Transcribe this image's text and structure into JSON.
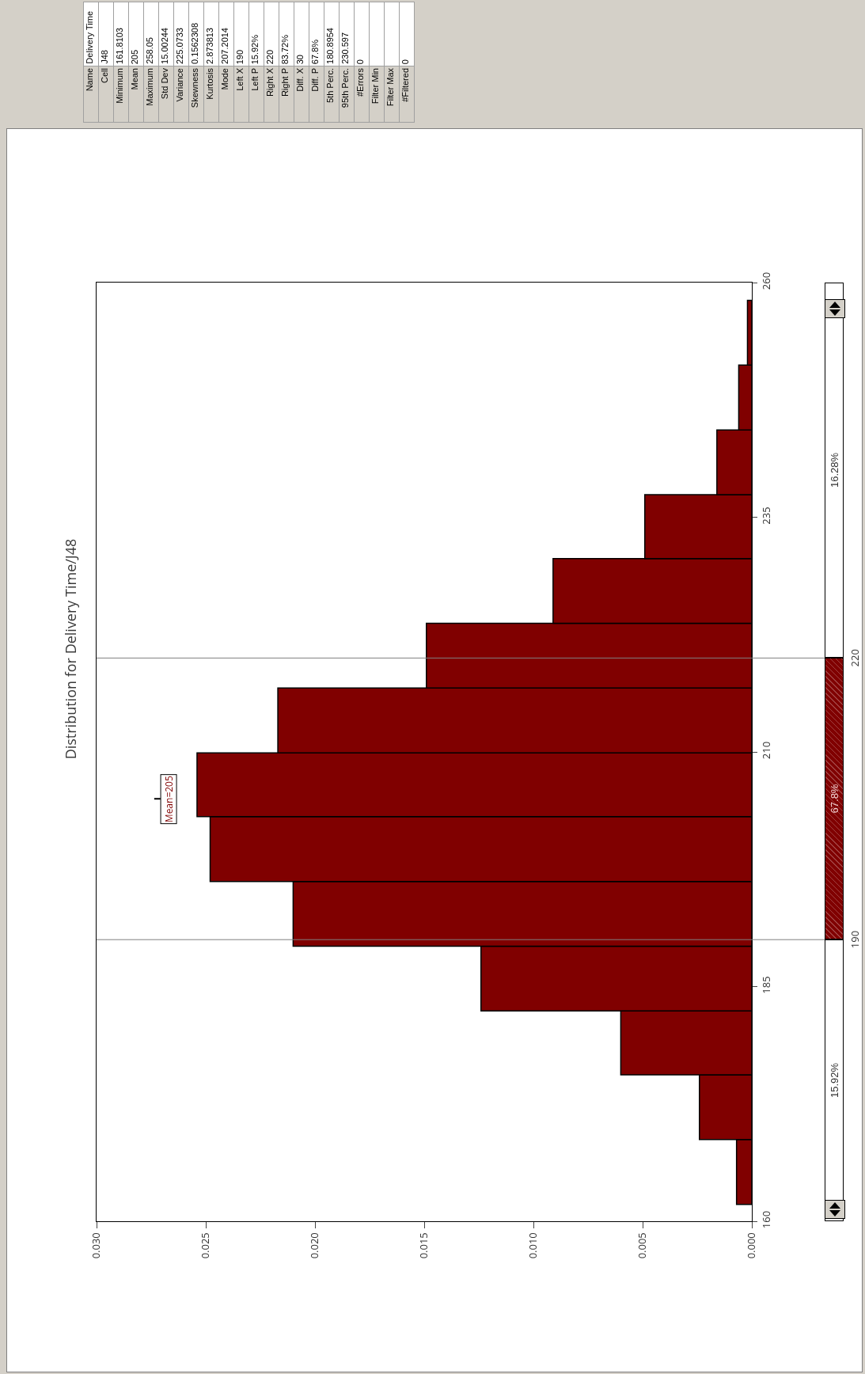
{
  "chart_data": {
    "type": "histogram",
    "orientation": "horizontal",
    "title": "Distribution for Delivery Time/J48",
    "bins": [
      161.8,
      168.7,
      175.6,
      182.4,
      189.3,
      196.2,
      203.1,
      209.9,
      216.8,
      223.7,
      230.6,
      237.4,
      244.3,
      251.2,
      258.1
    ],
    "values": [
      0.0007,
      0.0024,
      0.006,
      0.0124,
      0.021,
      0.0248,
      0.0254,
      0.0217,
      0.0149,
      0.0091,
      0.0049,
      0.0016,
      0.0006,
      0.0002
    ],
    "color": "#800000",
    "xlim": [
      0.03,
      0
    ],
    "xticks": [
      {
        "value": 0,
        "label": "0.000"
      },
      {
        "value": 0.005,
        "label": "0.005"
      },
      {
        "value": 0.01,
        "label": "0.010"
      },
      {
        "value": 0.015,
        "label": "0.015"
      },
      {
        "value": 0.02,
        "label": "0.020"
      },
      {
        "value": 0.025,
        "label": "0.025"
      },
      {
        "value": 0.03,
        "label": "0.030"
      }
    ],
    "ylim": [
      160,
      260
    ],
    "yticks": [
      160,
      185,
      210,
      235,
      260
    ],
    "grid": false,
    "legend": false,
    "ref_lines": [
      {
        "axis": "y",
        "value": 190,
        "label": "190",
        "color": "#808080"
      },
      {
        "axis": "y",
        "value": 220,
        "label": "220",
        "color": "#808080"
      }
    ],
    "annotations": [
      "Mean=205",
      "Name",
      "Delivery Time",
      "Cell",
      "J48",
      "Minimum",
      "161.8103",
      "Mean",
      "205",
      "Maximum",
      "258.05",
      "Std Dev",
      "15.00244",
      "Variance",
      "225.0733",
      "Skewness",
      "0.1562308",
      "Kurtosis",
      "2.873813",
      "Mode",
      "207.2014",
      "Left X",
      "190",
      "Left P",
      "15.92%",
      "Right X",
      "220",
      "Right P",
      "83.72%",
      "Diff. X",
      "30",
      "Diff. P",
      "67.8%",
      "5th Perc.",
      "180.8954",
      "95th Perc.",
      "230.597",
      "#Errors",
      "0",
      "Filter Min",
      null,
      "Filter Max",
      null,
      "#Filtered",
      "0",
      "15.92%",
      "67.8%",
      "16.28%"
    ]
  }
}
